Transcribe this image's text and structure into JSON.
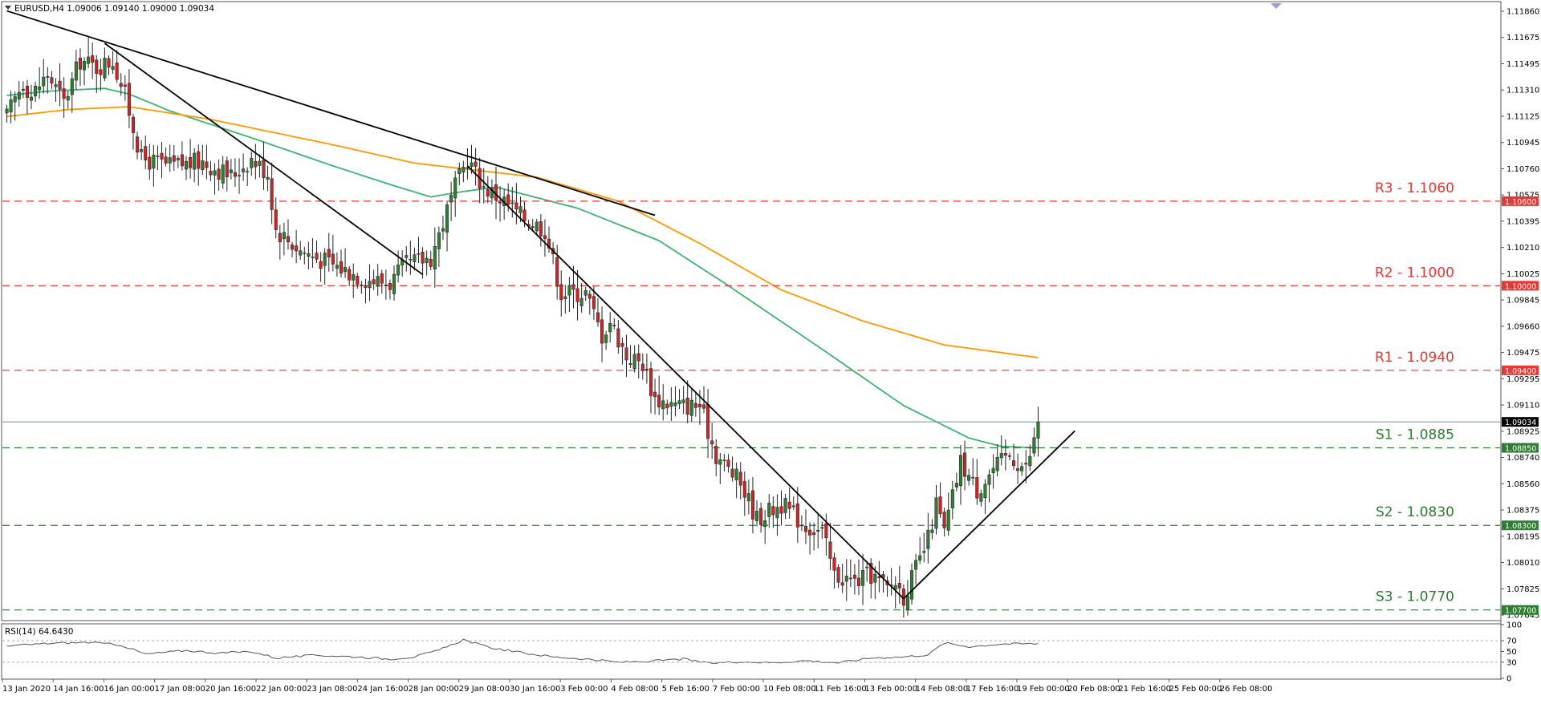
{
  "header": {
    "symbol_line": "EURUSD,H4  1.09006 1.09140 1.09000 1.09034"
  },
  "rsi_panel": {
    "label": "RSI(14) 64.6430",
    "levels": [
      100,
      70,
      50,
      30,
      0
    ],
    "tick_labels": [
      "100",
      "70",
      "50",
      "30",
      "0"
    ]
  },
  "colors": {
    "bull_candle": "#2e7d32",
    "bear_candle": "#c62828",
    "resistance": "#e53935",
    "support": "#2e7d32",
    "ma_fast": "#3cb371",
    "ma_slow": "#ff9800",
    "trendline": "#000000",
    "rsi_line": "#555555",
    "current_price": "#78909c"
  },
  "chart_data": {
    "type": "candlestick",
    "symbol": "EURUSD",
    "timeframe": "H4",
    "ylim": [
      1.0763,
      1.1201
    ],
    "y_tick_labels": [
      "1.11860",
      "1.11675",
      "1.11495",
      "1.11310",
      "1.11125",
      "1.10945",
      "1.10760",
      "1.10575",
      "1.10395",
      "1.10210",
      "1.10025",
      "1.09845",
      "1.09660",
      "1.09475",
      "1.09295",
      "1.09110",
      "1.08925",
      "1.08740",
      "1.08560",
      "1.08375",
      "1.08195",
      "1.08010",
      "1.07825",
      "1.07645"
    ],
    "x_tick_labels": [
      "13 Jan 2020",
      "14 Jan 16:00",
      "16 Jan 00:00",
      "17 Jan 08:00",
      "20 Jan 16:00",
      "22 Jan 00:00",
      "23 Jan 08:00",
      "24 Jan 16:00",
      "28 Jan 00:00",
      "29 Jan 08:00",
      "30 Jan 16:00",
      "3 Feb 00:00",
      "4 Feb 08:00",
      "5 Feb 16:00",
      "7 Feb 00:00",
      "10 Feb 08:00",
      "11 Feb 16:00",
      "13 Feb 00:00",
      "14 Feb 08:00",
      "17 Feb 16:00",
      "19 Feb 00:00",
      "20 Feb 08:00",
      "21 Feb 16:00",
      "25 Feb 00:00",
      "26 Feb 08:00"
    ],
    "levels": [
      {
        "name": "R3",
        "label": "R3 - 1.1060",
        "value": 1.106,
        "axis_label": "1.10600",
        "kind": "resistance"
      },
      {
        "name": "R2",
        "label": "R2 - 1.1000",
        "value": 1.1,
        "axis_label": "1.10000",
        "kind": "resistance"
      },
      {
        "name": "R1",
        "label": "R1 - 1.0940",
        "value": 1.094,
        "axis_label": "1.09400",
        "kind": "resistance"
      },
      {
        "name": "S1",
        "label": "S1 - 1.0885",
        "value": 1.0885,
        "axis_label": "1.08850",
        "kind": "support"
      },
      {
        "name": "S2",
        "label": "S2 - 1.0830",
        "value": 1.083,
        "axis_label": "1.08300",
        "kind": "support"
      },
      {
        "name": "S3",
        "label": "S3 - 1.0770",
        "value": 1.077,
        "axis_label": "1.07700",
        "kind": "support"
      }
    ],
    "current_price": {
      "value": 1.09034,
      "label": "1.09034"
    },
    "close_anchors": [
      [
        0,
        1.112
      ],
      [
        4,
        1.1145
      ],
      [
        6,
        1.1135
      ],
      [
        10,
        1.115
      ],
      [
        14,
        1.113
      ],
      [
        18,
        1.116
      ],
      [
        22,
        1.1155
      ],
      [
        26,
        1.116
      ],
      [
        29,
        1.1135
      ],
      [
        33,
        1.109
      ],
      [
        40,
        1.1085
      ],
      [
        48,
        1.1088
      ],
      [
        55,
        1.1078
      ],
      [
        60,
        1.109
      ],
      [
        64,
        1.108
      ],
      [
        66,
        1.104
      ],
      [
        72,
        1.1025
      ],
      [
        80,
        1.1015
      ],
      [
        88,
        1.1005
      ],
      [
        94,
        1.1002
      ],
      [
        98,
        1.1015
      ],
      [
        104,
        1.102
      ],
      [
        110,
        1.107
      ],
      [
        113,
        1.109
      ],
      [
        117,
        1.107
      ],
      [
        122,
        1.106
      ],
      [
        126,
        1.105
      ],
      [
        132,
        1.104
      ],
      [
        136,
        1.0995
      ],
      [
        142,
        1.0995
      ],
      [
        146,
        1.0965
      ],
      [
        148,
        1.0975
      ],
      [
        152,
        1.095
      ],
      [
        156,
        1.0945
      ],
      [
        159,
        1.092
      ],
      [
        164,
        1.0915
      ],
      [
        170,
        1.0915
      ],
      [
        174,
        1.088
      ],
      [
        180,
        1.086
      ],
      [
        184,
        1.0835
      ],
      [
        190,
        1.0845
      ],
      [
        196,
        1.083
      ],
      [
        200,
        1.0825
      ],
      [
        203,
        1.0795
      ],
      [
        208,
        1.079
      ],
      [
        212,
        1.0795
      ],
      [
        216,
        1.0785
      ],
      [
        218,
        1.079
      ],
      [
        220,
        1.078
      ],
      [
        224,
        1.0805
      ],
      [
        226,
        1.082
      ],
      [
        228,
        1.0845
      ],
      [
        230,
        1.0825
      ],
      [
        234,
        1.0875
      ],
      [
        238,
        1.0855
      ],
      [
        242,
        1.087
      ],
      [
        246,
        1.088
      ],
      [
        250,
        1.087
      ],
      [
        252,
        1.089
      ],
      [
        253,
        1.09034
      ]
    ],
    "candle_count": 254,
    "series": [
      {
        "name": "",
        "kind": "moving-average-fast",
        "anchors": [
          [
            0,
            1.1135
          ],
          [
            10,
            1.1138
          ],
          [
            24,
            1.114
          ],
          [
            30,
            1.1136
          ],
          [
            40,
            1.1124
          ],
          [
            60,
            1.1105
          ],
          [
            80,
            1.1085
          ],
          [
            96,
            1.107
          ],
          [
            104,
            1.1063
          ],
          [
            110,
            1.1066
          ],
          [
            120,
            1.107
          ],
          [
            140,
            1.1055
          ],
          [
            160,
            1.1032
          ],
          [
            176,
            1.1002
          ],
          [
            200,
            1.0955
          ],
          [
            220,
            1.0915
          ],
          [
            236,
            1.0892
          ],
          [
            244,
            1.0886
          ],
          [
            253,
            1.0885
          ]
        ]
      },
      {
        "name": "",
        "kind": "moving-average-slow",
        "anchors": [
          [
            0,
            1.112
          ],
          [
            15,
            1.1125
          ],
          [
            30,
            1.1127
          ],
          [
            50,
            1.1118
          ],
          [
            80,
            1.11
          ],
          [
            100,
            1.1087
          ],
          [
            115,
            1.1082
          ],
          [
            130,
            1.1077
          ],
          [
            150,
            1.106
          ],
          [
            170,
            1.103
          ],
          [
            190,
            1.0997
          ],
          [
            210,
            1.0975
          ],
          [
            230,
            1.0958
          ],
          [
            253,
            1.0949
          ]
        ]
      }
    ],
    "trendlines": [
      {
        "from": [
          0,
          1.1195
        ],
        "to": [
          159,
          1.105
        ]
      },
      {
        "from": [
          24,
          1.1172
        ],
        "to": [
          102,
          1.1008
        ]
      },
      {
        "from": [
          113,
          1.1085
        ],
        "to": [
          220,
          1.0778
        ]
      },
      {
        "from": [
          220,
          1.0778
        ],
        "to": [
          262,
          1.0897
        ]
      }
    ],
    "rsi": {
      "value": 64.643,
      "anchors": [
        [
          0,
          60
        ],
        [
          10,
          65
        ],
        [
          20,
          67
        ],
        [
          28,
          62
        ],
        [
          34,
          45
        ],
        [
          44,
          52
        ],
        [
          52,
          47
        ],
        [
          60,
          50
        ],
        [
          66,
          38
        ],
        [
          76,
          43
        ],
        [
          86,
          40
        ],
        [
          94,
          36
        ],
        [
          100,
          40
        ],
        [
          106,
          52
        ],
        [
          112,
          72
        ],
        [
          118,
          58
        ],
        [
          126,
          48
        ],
        [
          134,
          40
        ],
        [
          142,
          36
        ],
        [
          150,
          30
        ],
        [
          158,
          32
        ],
        [
          166,
          36
        ],
        [
          172,
          28
        ],
        [
          180,
          31
        ],
        [
          188,
          29
        ],
        [
          196,
          33
        ],
        [
          204,
          29
        ],
        [
          212,
          38
        ],
        [
          220,
          40
        ],
        [
          226,
          44
        ],
        [
          230,
          66
        ],
        [
          236,
          59
        ],
        [
          244,
          64
        ],
        [
          253,
          64.6
        ]
      ]
    }
  }
}
